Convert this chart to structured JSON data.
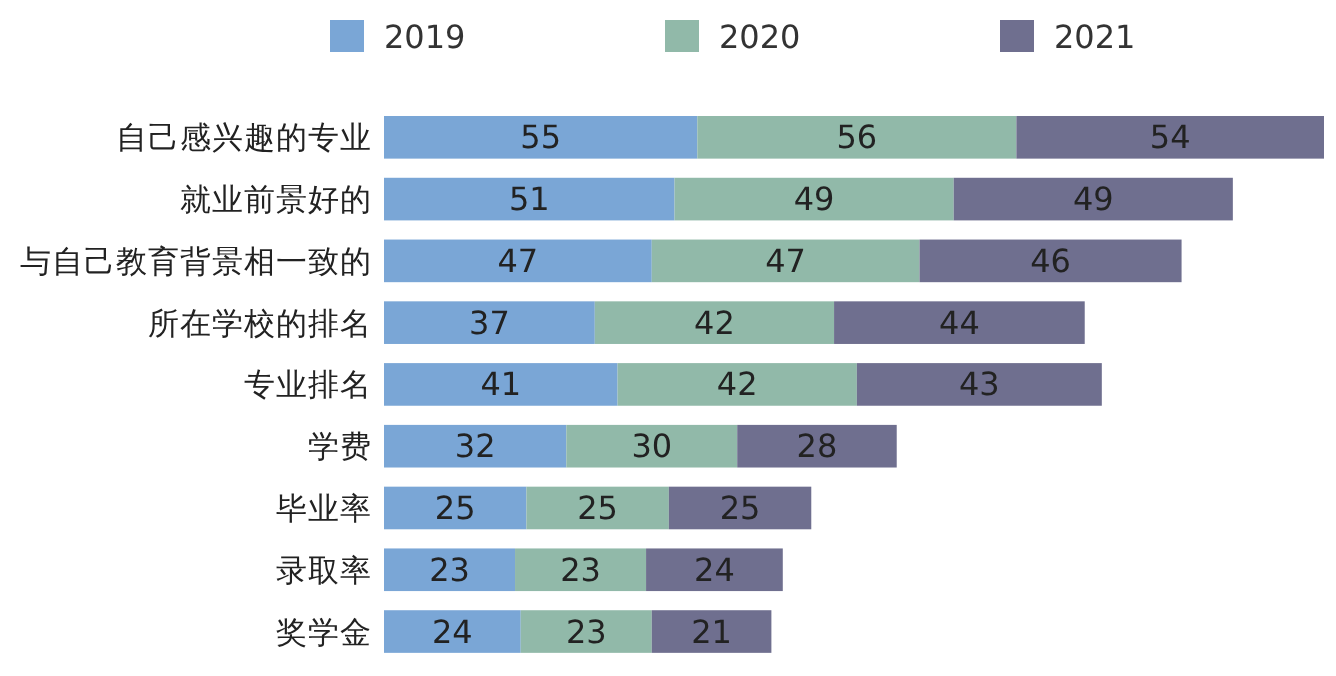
{
  "chart_data": {
    "type": "bar",
    "orientation": "horizontal",
    "stacked": true,
    "data_labels": true,
    "legend": "top",
    "categories": [
      "自己感兴趣的专业",
      "就业前景好的",
      "与自己教育背景相一致的",
      "所在学校的排名",
      "专业排名",
      "学费",
      "毕业率",
      "录取率",
      "奖学金"
    ],
    "series": [
      {
        "name": "2019",
        "color": "#7aa6d6",
        "values": [
          55,
          51,
          47,
          37,
          41,
          32,
          25,
          23,
          24
        ]
      },
      {
        "name": "2020",
        "color": "#91b9a9",
        "values": [
          56,
          49,
          47,
          42,
          42,
          30,
          25,
          23,
          23
        ]
      },
      {
        "name": "2021",
        "color": "#6f6f8f",
        "values": [
          54,
          49,
          46,
          44,
          43,
          28,
          25,
          24,
          21
        ]
      }
    ]
  }
}
